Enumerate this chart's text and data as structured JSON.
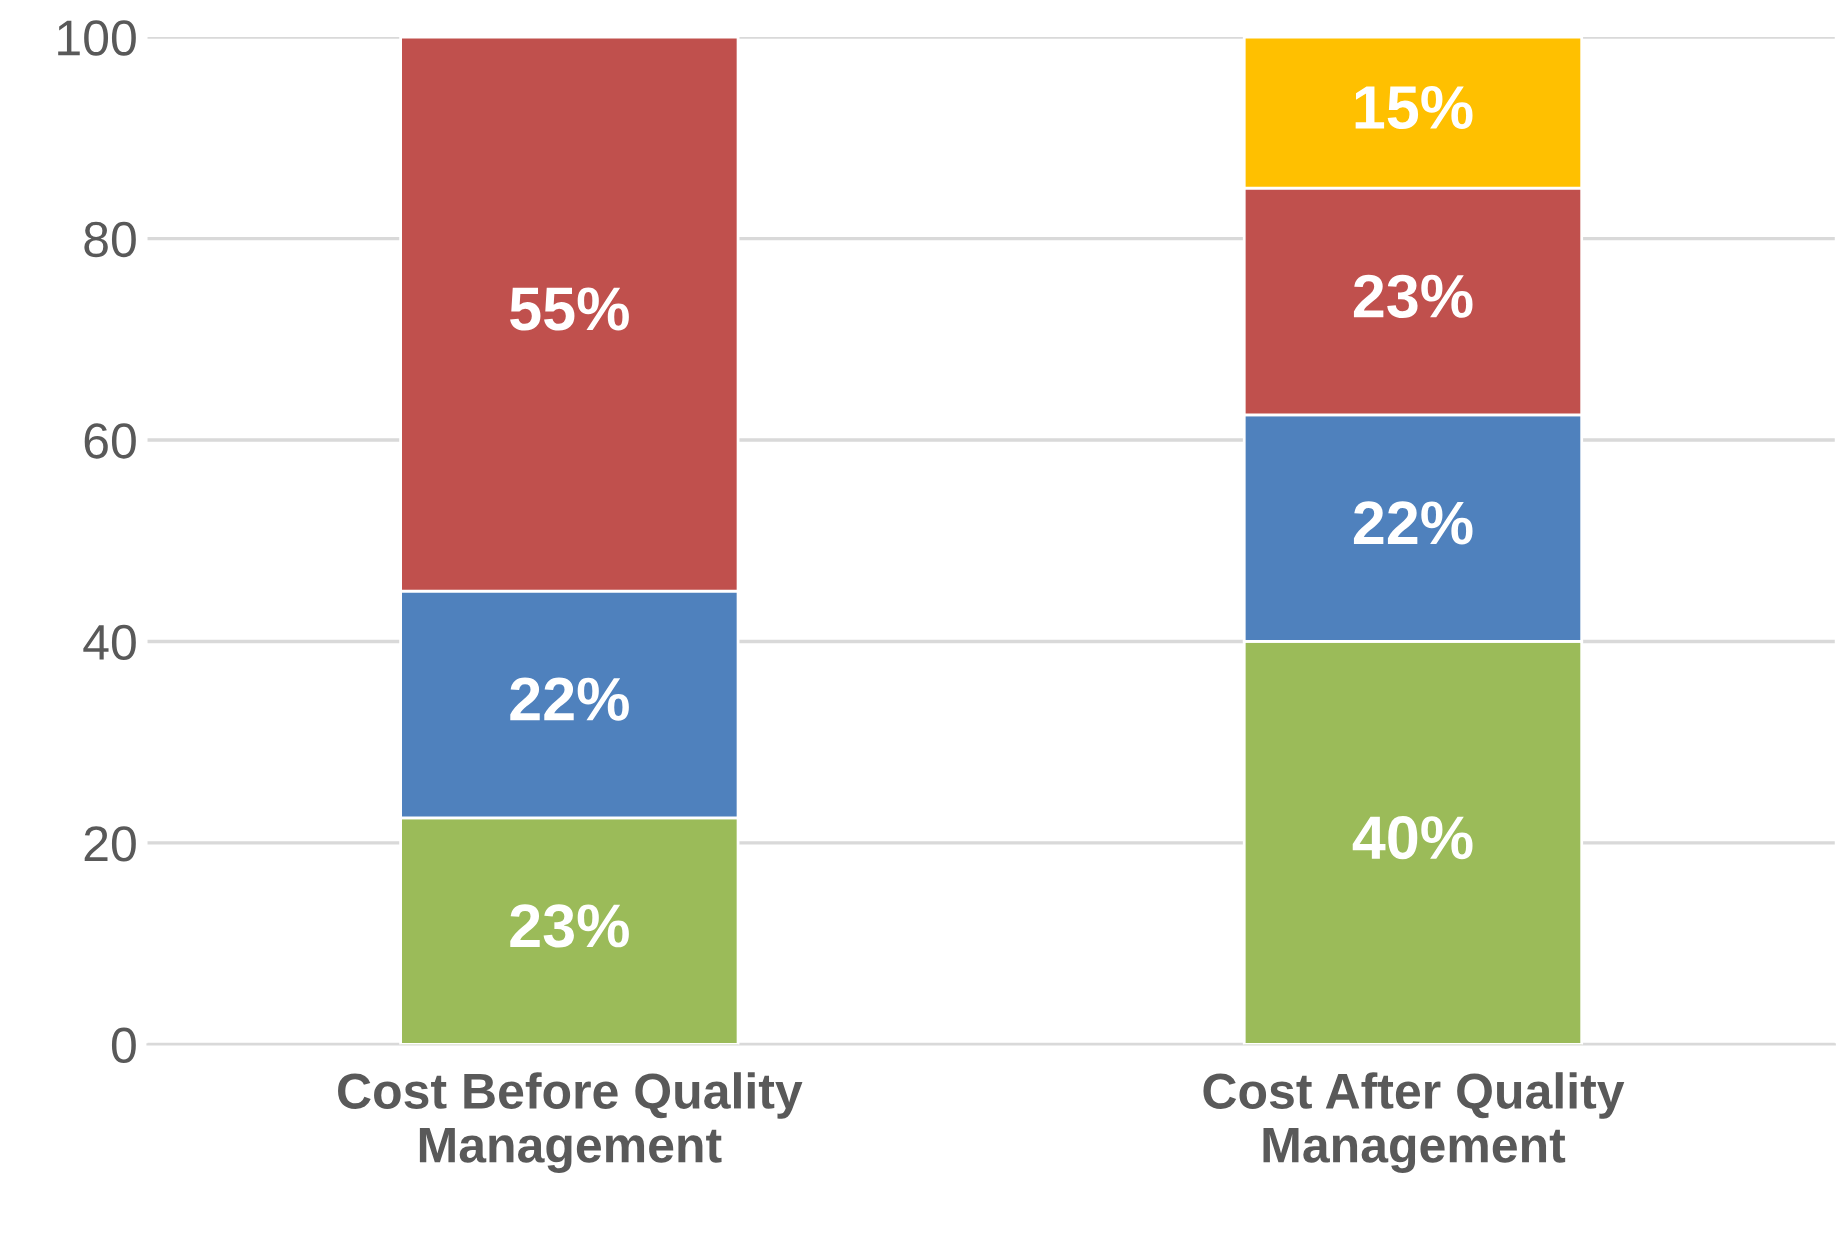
{
  "chart_data": {
    "type": "bar",
    "stacked": true,
    "categories": [
      "Cost Before Quality\nManagement",
      "Cost After Quality\nManagement"
    ],
    "series": [
      {
        "color": "#9bbb59",
        "values": [
          22.5,
          40
        ],
        "value_labels": [
          "23%",
          "40%"
        ]
      },
      {
        "color": "#4f81bd",
        "values": [
          22.5,
          22.5
        ],
        "value_labels": [
          "22%",
          "22%"
        ]
      },
      {
        "color": "#c0504d",
        "values": [
          55,
          22.5
        ],
        "value_labels": [
          "55%",
          "23%"
        ]
      },
      {
        "color": "#ffc000",
        "values": [
          null,
          15
        ],
        "value_labels": [
          null,
          "15%"
        ]
      }
    ],
    "ylim": [
      0,
      100
    ],
    "yticks": [
      0,
      20,
      40,
      60,
      80,
      100
    ],
    "grid": "y",
    "legend": false
  }
}
